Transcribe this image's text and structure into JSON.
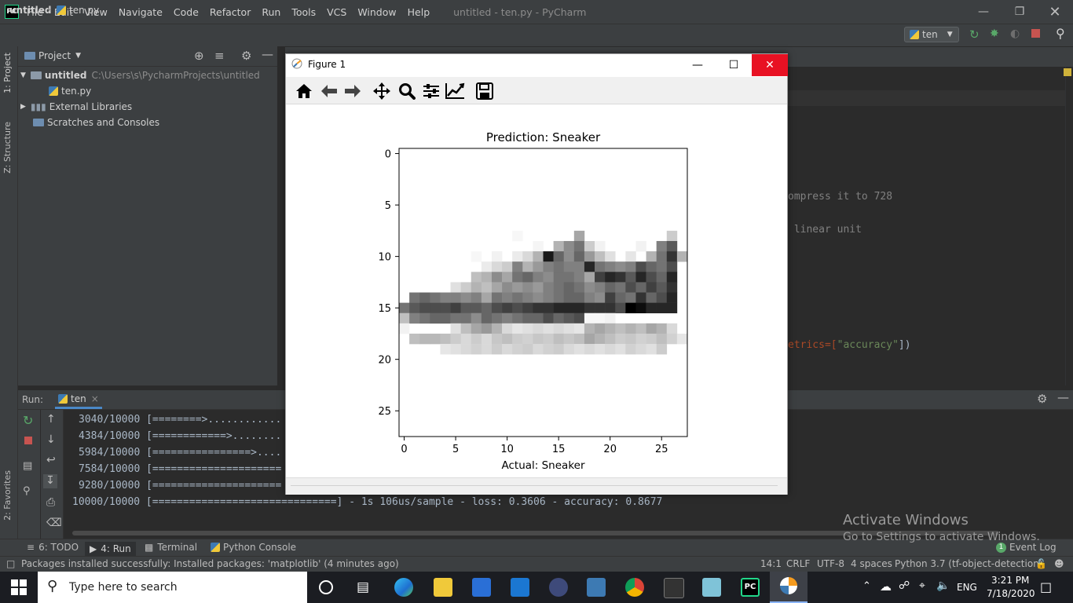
{
  "ide": {
    "logo_text": "PC",
    "menu": [
      "File",
      "Edit",
      "View",
      "Navigate",
      "Code",
      "Refactor",
      "Run",
      "Tools",
      "VCS",
      "Window",
      "Help"
    ],
    "window_title": "untitled - ten.py - PyCharm",
    "breadcrumb": {
      "project": "untitled",
      "file": "ten.py"
    },
    "run_config": "ten"
  },
  "project_panel": {
    "title": "Project",
    "root": {
      "name": "untitled",
      "path": "C:\\Users\\s\\PycharmProjects\\untitled"
    },
    "file": "ten.py",
    "external": "External Libraries",
    "scratches": "Scratches and Consoles"
  },
  "side_tabs": {
    "project": "1: Project",
    "structure": "Z: Structure",
    "favorites": "2: Favorites"
  },
  "editor_fragments": {
    "line1": "ompress it to 728",
    "line2": " linear unit",
    "line3_a": "etrics=[",
    "line3_b": "\"accuracy\"",
    "line3_c": "])"
  },
  "run_panel": {
    "label": "Run:",
    "tab": "ten",
    "lines": [
      "3040/10000 [========>............",
      "4384/10000 [============>........",
      "5984/10000 [================>....",
      "7584/10000 [=====================",
      "9280/10000 [=====================",
      "10000/10000 [==============================] - 1s 106us/sample - loss: 0.3606 - accuracy: 0.8677"
    ]
  },
  "bottom_tabs": [
    "6: TODO",
    "4: Run",
    "Terminal",
    "Python Console"
  ],
  "event_log": {
    "count": "1",
    "label": "Event Log"
  },
  "status": {
    "message": "Packages installed successfully: Installed packages: 'matplotlib' (4 minutes ago)",
    "position": "14:1",
    "line_sep": "CRLF",
    "encoding": "UTF-8",
    "indent": "4 spaces",
    "interpreter": "Python 3.7 (tf-object-detection)"
  },
  "figure": {
    "window_title": "Figure 1",
    "toolbar_icons": [
      "home-icon",
      "back-arrow-icon",
      "forward-arrow-icon",
      "pan-icon",
      "zoom-icon",
      "subplots-config-icon",
      "edit-axes-icon",
      "save-icon"
    ]
  },
  "chart_data": {
    "type": "heatmap",
    "title": "Prediction: Sneaker",
    "xlabel": "Actual: Sneaker",
    "ylabel": "",
    "xlim": [
      -0.5,
      27.5
    ],
    "ylim": [
      27.5,
      -0.5
    ],
    "xticks": [
      0,
      5,
      10,
      15,
      20,
      25
    ],
    "yticks": [
      0,
      5,
      10,
      15,
      20,
      25
    ],
    "colormap": "binary",
    "grid": false,
    "rows": [
      {
        "y": 8,
        "cells": [
          [
            11,
            0.03
          ],
          [
            17,
            0.35
          ],
          [
            26,
            0.2
          ]
        ]
      },
      {
        "y": 9,
        "cells": [
          [
            13,
            0.04
          ],
          [
            15,
            0.3
          ],
          [
            16,
            0.45
          ],
          [
            17,
            0.55
          ],
          [
            18,
            0.2
          ],
          [
            19,
            0.05
          ],
          [
            23,
            0.05
          ],
          [
            25,
            0.5
          ],
          [
            26,
            0.65
          ]
        ]
      },
      {
        "y": 10,
        "cells": [
          [
            7,
            0.03
          ],
          [
            9,
            0.05
          ],
          [
            11,
            0.08
          ],
          [
            12,
            0.15
          ],
          [
            13,
            0.3
          ],
          [
            14,
            0.9
          ],
          [
            15,
            0.6
          ],
          [
            16,
            0.45
          ],
          [
            17,
            0.6
          ],
          [
            18,
            0.4
          ],
          [
            19,
            0.25
          ],
          [
            20,
            0.12
          ],
          [
            22,
            0.1
          ],
          [
            24,
            0.3
          ],
          [
            25,
            0.55
          ],
          [
            26,
            0.8
          ],
          [
            27,
            0.3
          ]
        ]
      },
      {
        "y": 11,
        "cells": [
          [
            8,
            0.08
          ],
          [
            9,
            0.15
          ],
          [
            10,
            0.2
          ],
          [
            11,
            0.5
          ],
          [
            12,
            0.3
          ],
          [
            13,
            0.4
          ],
          [
            14,
            0.5
          ],
          [
            15,
            0.55
          ],
          [
            16,
            0.5
          ],
          [
            17,
            0.5
          ],
          [
            18,
            0.85
          ],
          [
            19,
            0.55
          ],
          [
            20,
            0.5
          ],
          [
            21,
            0.45
          ],
          [
            22,
            0.5
          ],
          [
            23,
            0.7
          ],
          [
            24,
            0.6
          ],
          [
            25,
            0.55
          ],
          [
            26,
            0.7
          ]
        ]
      },
      {
        "y": 12,
        "cells": [
          [
            7,
            0.25
          ],
          [
            8,
            0.3
          ],
          [
            9,
            0.45
          ],
          [
            10,
            0.35
          ],
          [
            11,
            0.55
          ],
          [
            12,
            0.6
          ],
          [
            13,
            0.5
          ],
          [
            14,
            0.45
          ],
          [
            15,
            0.55
          ],
          [
            16,
            0.55
          ],
          [
            17,
            0.5
          ],
          [
            18,
            0.35
          ],
          [
            19,
            0.75
          ],
          [
            20,
            0.85
          ],
          [
            21,
            0.8
          ],
          [
            22,
            0.65
          ],
          [
            23,
            0.85
          ],
          [
            24,
            0.7
          ],
          [
            25,
            0.6
          ],
          [
            26,
            0.85
          ]
        ]
      },
      {
        "y": 13,
        "cells": [
          [
            5,
            0.12
          ],
          [
            6,
            0.2
          ],
          [
            7,
            0.3
          ],
          [
            8,
            0.25
          ],
          [
            9,
            0.35
          ],
          [
            10,
            0.45
          ],
          [
            11,
            0.4
          ],
          [
            12,
            0.45
          ],
          [
            13,
            0.4
          ],
          [
            14,
            0.5
          ],
          [
            15,
            0.55
          ],
          [
            16,
            0.6
          ],
          [
            17,
            0.55
          ],
          [
            18,
            0.45
          ],
          [
            19,
            0.5
          ],
          [
            20,
            0.6
          ],
          [
            21,
            0.55
          ],
          [
            22,
            0.7
          ],
          [
            23,
            0.6
          ],
          [
            24,
            0.75
          ],
          [
            25,
            0.65
          ],
          [
            26,
            0.8
          ]
        ]
      },
      {
        "y": 14,
        "cells": [
          [
            1,
            0.55
          ],
          [
            2,
            0.6
          ],
          [
            3,
            0.55
          ],
          [
            4,
            0.5
          ],
          [
            5,
            0.5
          ],
          [
            6,
            0.45
          ],
          [
            7,
            0.5
          ],
          [
            8,
            0.35
          ],
          [
            9,
            0.55
          ],
          [
            10,
            0.5
          ],
          [
            11,
            0.55
          ],
          [
            12,
            0.5
          ],
          [
            13,
            0.45
          ],
          [
            14,
            0.5
          ],
          [
            15,
            0.55
          ],
          [
            16,
            0.6
          ],
          [
            17,
            0.6
          ],
          [
            18,
            0.5
          ],
          [
            19,
            0.45
          ],
          [
            20,
            0.75
          ],
          [
            21,
            0.6
          ],
          [
            22,
            0.55
          ],
          [
            23,
            0.8
          ],
          [
            24,
            0.6
          ],
          [
            25,
            0.7
          ],
          [
            26,
            0.85
          ]
        ]
      },
      {
        "y": 15,
        "cells": [
          [
            0,
            0.55
          ],
          [
            1,
            0.65
          ],
          [
            2,
            0.7
          ],
          [
            3,
            0.7
          ],
          [
            4,
            0.7
          ],
          [
            5,
            0.75
          ],
          [
            6,
            0.65
          ],
          [
            7,
            0.65
          ],
          [
            8,
            0.6
          ],
          [
            9,
            0.7
          ],
          [
            10,
            0.75
          ],
          [
            11,
            0.7
          ],
          [
            12,
            0.75
          ],
          [
            13,
            0.8
          ],
          [
            14,
            0.8
          ],
          [
            15,
            0.85
          ],
          [
            16,
            0.85
          ],
          [
            17,
            0.85
          ],
          [
            18,
            0.8
          ],
          [
            19,
            0.8
          ],
          [
            20,
            0.8
          ],
          [
            21,
            0.7
          ],
          [
            22,
            1.0
          ],
          [
            23,
            0.95
          ],
          [
            24,
            0.85
          ],
          [
            25,
            0.85
          ],
          [
            26,
            0.85
          ]
        ]
      },
      {
        "y": 16,
        "cells": [
          [
            0,
            0.25
          ],
          [
            1,
            0.5
          ],
          [
            2,
            0.55
          ],
          [
            3,
            0.6
          ],
          [
            4,
            0.6
          ],
          [
            5,
            0.55
          ],
          [
            6,
            0.55
          ],
          [
            7,
            0.45
          ],
          [
            8,
            0.6
          ],
          [
            9,
            0.55
          ],
          [
            10,
            0.5
          ],
          [
            11,
            0.55
          ],
          [
            12,
            0.6
          ],
          [
            13,
            0.6
          ],
          [
            14,
            0.7
          ],
          [
            15,
            0.6
          ],
          [
            16,
            0.65
          ],
          [
            17,
            0.7
          ],
          [
            18,
            0.03
          ],
          [
            19,
            0.03
          ],
          [
            20,
            0.05
          ]
        ]
      },
      {
        "y": 17,
        "cells": [
          [
            0,
            0.05
          ],
          [
            5,
            0.12
          ],
          [
            6,
            0.25
          ],
          [
            7,
            0.35
          ],
          [
            8,
            0.4
          ],
          [
            9,
            0.3
          ],
          [
            10,
            0.15
          ],
          [
            11,
            0.1
          ],
          [
            12,
            0.12
          ],
          [
            13,
            0.15
          ],
          [
            14,
            0.12
          ],
          [
            15,
            0.15
          ],
          [
            16,
            0.12
          ],
          [
            17,
            0.1
          ],
          [
            18,
            0.3
          ],
          [
            19,
            0.35
          ],
          [
            20,
            0.3
          ],
          [
            21,
            0.25
          ],
          [
            22,
            0.3
          ],
          [
            23,
            0.25
          ],
          [
            24,
            0.35
          ],
          [
            25,
            0.3
          ],
          [
            26,
            0.15
          ]
        ]
      },
      {
        "y": 18,
        "cells": [
          [
            1,
            0.25
          ],
          [
            2,
            0.28
          ],
          [
            3,
            0.28
          ],
          [
            4,
            0.25
          ],
          [
            5,
            0.2
          ],
          [
            6,
            0.15
          ],
          [
            7,
            0.2
          ],
          [
            8,
            0.15
          ],
          [
            9,
            0.22
          ],
          [
            10,
            0.25
          ],
          [
            11,
            0.2
          ],
          [
            12,
            0.18
          ],
          [
            13,
            0.22
          ],
          [
            14,
            0.2
          ],
          [
            15,
            0.25
          ],
          [
            16,
            0.22
          ],
          [
            17,
            0.25
          ],
          [
            18,
            0.35
          ],
          [
            19,
            0.3
          ],
          [
            20,
            0.25
          ],
          [
            21,
            0.2
          ],
          [
            22,
            0.22
          ],
          [
            23,
            0.18
          ],
          [
            24,
            0.2
          ],
          [
            25,
            0.25
          ],
          [
            26,
            0.18
          ],
          [
            27,
            0.1
          ]
        ]
      },
      {
        "y": 19,
        "cells": [
          [
            4,
            0.1
          ],
          [
            5,
            0.12
          ],
          [
            6,
            0.15
          ],
          [
            7,
            0.18
          ],
          [
            8,
            0.15
          ],
          [
            9,
            0.2
          ],
          [
            10,
            0.15
          ],
          [
            11,
            0.18
          ],
          [
            12,
            0.2
          ],
          [
            13,
            0.15
          ],
          [
            14,
            0.18
          ],
          [
            15,
            0.2
          ],
          [
            16,
            0.15
          ],
          [
            17,
            0.12
          ],
          [
            18,
            0.15
          ],
          [
            19,
            0.12
          ],
          [
            20,
            0.15
          ],
          [
            21,
            0.12
          ],
          [
            22,
            0.18
          ],
          [
            23,
            0.15
          ],
          [
            24,
            0.12
          ],
          [
            25,
            0.2
          ]
        ]
      }
    ]
  },
  "watermark": {
    "line1": "Activate Windows",
    "line2": "Go to Settings to activate Windows."
  },
  "taskbar": {
    "search_placeholder": "Type here to search",
    "language": "ENG",
    "time": "3:21 PM",
    "date": "7/18/2020"
  },
  "colors": {
    "ide_bg": "#2b2b2b",
    "panel_bg": "#3c3f41",
    "accent": "#4a88c7",
    "close_red": "#e81123"
  }
}
